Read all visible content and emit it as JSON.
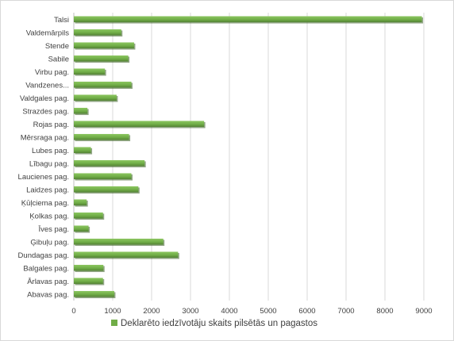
{
  "chart_data": {
    "type": "bar",
    "orientation": "horizontal",
    "categories": [
      "Talsi",
      "Valdemārpils",
      "Stende",
      "Sabile",
      "Virbu pag.",
      "Vandzenes...",
      "Valdgales pag.",
      "Strazdes pag.",
      "Rojas pag.",
      "Mērsraga pag.",
      "Lubes pag.",
      "Lībagu pag.",
      "Laucienes pag.",
      "Laidzes pag.",
      "Ķūļciema pag.",
      "Ķolkas pag.",
      "Īves pag.",
      "Ģibuļu pag.",
      "Dundagas pag.",
      "Balgales pag.",
      "Ārlavas pag.",
      "Abavas pag."
    ],
    "series": [
      {
        "name": "Deklarēto iedzīvotāju skaits pilsētās un pagastos",
        "values": [
          8950,
          1220,
          1550,
          1400,
          800,
          1480,
          1100,
          350,
          3350,
          1420,
          440,
          1820,
          1480,
          1660,
          330,
          750,
          380,
          2300,
          2680,
          760,
          750,
          1040
        ],
        "color": "#70ad47"
      }
    ],
    "xlim": [
      0,
      9000
    ],
    "xticks": [
      "0",
      "1000",
      "2000",
      "3000",
      "4000",
      "5000",
      "6000",
      "7000",
      "8000",
      "9000"
    ],
    "grid": true,
    "legend_position": "bottom",
    "title": "",
    "xlabel": "",
    "ylabel": ""
  }
}
